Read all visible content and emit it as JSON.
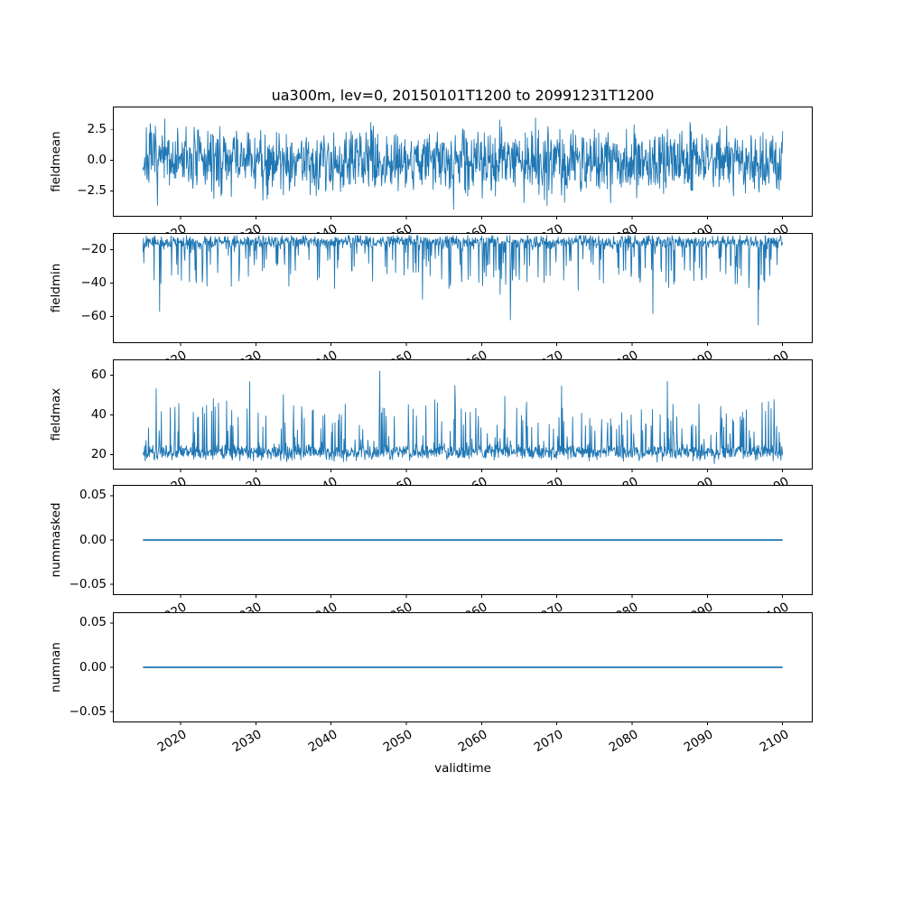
{
  "figure": {
    "title": "ua300m, lev=0, 20150101T1200 to 20991231T1200",
    "xlabel": "validtime",
    "line_color": "#1f77b4",
    "xlim": [
      2011,
      2104
    ],
    "xticks": [
      2020,
      2030,
      2040,
      2050,
      2060,
      2070,
      2080,
      2090,
      2100
    ],
    "xtick_labels": [
      "2020",
      "2030",
      "2040",
      "2050",
      "2060",
      "2070",
      "2080",
      "2090",
      "2100"
    ]
  },
  "chart_data": [
    {
      "type": "line",
      "name": "fieldmean",
      "ylabel": "fieldmean",
      "x_start": 2015,
      "x_end": 2100,
      "ylim": [
        -4.6,
        4.4
      ],
      "yticks": [
        2.5,
        0.0,
        -2.5
      ],
      "ytick_labels": [
        "2.5",
        "0.0",
        "−2.5"
      ],
      "series": {
        "kind": "gauss",
        "baseline": 0.0,
        "sigma": 1.3,
        "observed_min": -4.3,
        "observed_max": 4.2,
        "seed": 7
      }
    },
    {
      "type": "line",
      "name": "fieldmin",
      "ylabel": "fieldmin",
      "x_start": 2015,
      "x_end": 2100,
      "ylim": [
        -76,
        -10
      ],
      "yticks": [
        -20,
        -40,
        -60
      ],
      "ytick_labels": [
        "−20",
        "−40",
        "−60"
      ],
      "series": {
        "kind": "spikes",
        "direction": -1,
        "baseline": -14,
        "band_sigma": 2.8,
        "spike_prob": 0.12,
        "spike_amp": [
          6,
          20
        ],
        "extreme_prob": 0.005,
        "extreme_amp": [
          28,
          28
        ],
        "clip": [
          -73,
          -11.5
        ],
        "seed": 13
      }
    },
    {
      "type": "line",
      "name": "fieldmax",
      "ylabel": "fieldmax",
      "x_start": 2015,
      "x_end": 2100,
      "ylim": [
        12.5,
        68
      ],
      "yticks": [
        20,
        40,
        60
      ],
      "ytick_labels": [
        "20",
        "40",
        "60"
      ],
      "series": {
        "kind": "spikes",
        "direction": 1,
        "baseline": 20,
        "band_sigma": 2.8,
        "spike_prob": 0.12,
        "spike_amp": [
          6,
          20
        ],
        "extreme_prob": 0.005,
        "extreme_amp": [
          30,
          15
        ],
        "clip": [
          14.5,
          66
        ],
        "seed": 21
      }
    },
    {
      "type": "line",
      "name": "nummasked",
      "ylabel": "nummasked",
      "x_start": 2015,
      "x_end": 2100,
      "ylim": [
        -0.062,
        0.062
      ],
      "yticks": [
        0.05,
        0.0,
        -0.05
      ],
      "ytick_labels": [
        "0.05",
        "0.00",
        "−0.05"
      ],
      "series": {
        "kind": "const",
        "value": 0.0
      }
    },
    {
      "type": "line",
      "name": "numnan",
      "ylabel": "numnan",
      "x_start": 2015,
      "x_end": 2100,
      "ylim": [
        -0.062,
        0.062
      ],
      "yticks": [
        0.05,
        0.0,
        -0.05
      ],
      "ytick_labels": [
        "0.05",
        "0.00",
        "−0.05"
      ],
      "series": {
        "kind": "const",
        "value": 0.0
      }
    }
  ]
}
